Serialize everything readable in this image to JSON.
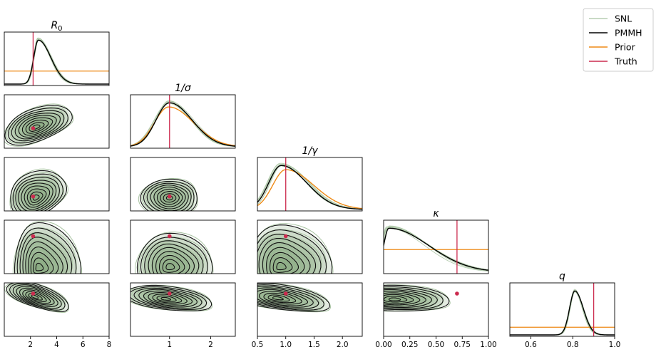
{
  "chart_data": {
    "type": "corner",
    "parameters": [
      {
        "key": "R0",
        "label": "R",
        "sub": "0",
        "range": [
          0,
          8
        ],
        "ticks": [
          2,
          4,
          6,
          8
        ],
        "truth": 2.2
      },
      {
        "key": "inv_sigma",
        "label": "1/σ",
        "range": [
          0.05,
          2.6
        ],
        "ticks": [
          1,
          2
        ],
        "truth": 1.0
      },
      {
        "key": "inv_gamma",
        "label": "1/γ",
        "range": [
          0.5,
          2.35
        ],
        "ticks": [
          0.5,
          1.0,
          1.5,
          2.0
        ],
        "truth": 1.0
      },
      {
        "key": "kappa",
        "label": "κ",
        "range": [
          0.0,
          1.0
        ],
        "ticks": [
          0.0,
          0.25,
          0.5,
          0.75,
          1.0
        ],
        "truth": 0.7
      },
      {
        "key": "q",
        "label": "q",
        "range": [
          0.5,
          1.0
        ],
        "ticks": [
          0.6,
          0.8,
          1.0
        ],
        "truth": 0.9
      }
    ],
    "tick_labels": {
      "R0": [
        "2",
        "4",
        "6",
        "8"
      ],
      "inv_sigma": [
        "1",
        "2"
      ],
      "inv_gamma": [
        "0.5",
        "1.0",
        "1.5",
        "2.0"
      ],
      "kappa": [
        "0.00",
        "0.25",
        "0.50",
        "0.75",
        "1.00"
      ],
      "q": [
        "0.6",
        "0.8",
        "1.0"
      ]
    },
    "legend": [
      {
        "label": "SNL",
        "color": "#a9c4a2"
      },
      {
        "label": "PMMH",
        "color": "#000000"
      },
      {
        "label": "Prior",
        "color": "#ee8a16"
      },
      {
        "label": "Truth",
        "color": "#cc2a4e"
      }
    ],
    "marginals": [
      {
        "param": "R0",
        "prior": "uniform",
        "prior_level": 0.27,
        "posterior_mode": 2.6,
        "left_spread": 0.35,
        "right_spread": 0.95
      },
      {
        "param": "inv_sigma",
        "prior": "density",
        "prior_mode": 0.98,
        "posterior_mode": 1.0,
        "left_spread": 0.33,
        "right_spread": 0.55
      },
      {
        "param": "inv_gamma",
        "prior": "density",
        "prior_mode": 1.0,
        "posterior_mode": 0.92,
        "left_spread": 0.22,
        "right_spread": 0.45
      },
      {
        "param": "kappa",
        "prior": "uniform",
        "prior_level": 0.45,
        "posterior_mode": 0.05,
        "left_spread": 0.05,
        "right_spread": 0.38
      },
      {
        "param": "q",
        "prior": "uniform",
        "prior_level": 0.17,
        "posterior_mode": 0.81,
        "left_spread": 0.025,
        "right_spread": 0.04
      }
    ],
    "pairs": [
      {
        "row": 1,
        "col": 0,
        "center": [
          2.4,
          1.05
        ],
        "truth": [
          2.2,
          1.0
        ]
      },
      {
        "row": 2,
        "col": 0,
        "center": [
          2.4,
          0.95
        ],
        "truth": [
          2.2,
          1.0
        ]
      },
      {
        "row": 2,
        "col": 1,
        "center": [
          1.0,
          0.95
        ],
        "truth": [
          1.0,
          1.0
        ]
      },
      {
        "row": 3,
        "col": 0,
        "center": [
          2.6,
          0.1
        ],
        "truth": [
          2.2,
          0.7
        ]
      },
      {
        "row": 3,
        "col": 1,
        "center": [
          1.0,
          0.12
        ],
        "truth": [
          1.0,
          0.7
        ]
      },
      {
        "row": 3,
        "col": 2,
        "center": [
          0.9,
          0.12
        ],
        "truth": [
          1.0,
          0.7
        ]
      },
      {
        "row": 4,
        "col": 0,
        "center": [
          2.3,
          0.87
        ],
        "truth": [
          2.2,
          0.9
        ]
      },
      {
        "row": 4,
        "col": 1,
        "center": [
          0.9,
          0.85
        ],
        "truth": [
          1.0,
          0.9
        ]
      },
      {
        "row": 4,
        "col": 2,
        "center": [
          0.85,
          0.855
        ],
        "truth": [
          1.0,
          0.9
        ]
      },
      {
        "row": 4,
        "col": 3,
        "center": [
          0.1,
          0.845
        ],
        "truth": [
          0.7,
          0.9
        ]
      }
    ]
  }
}
